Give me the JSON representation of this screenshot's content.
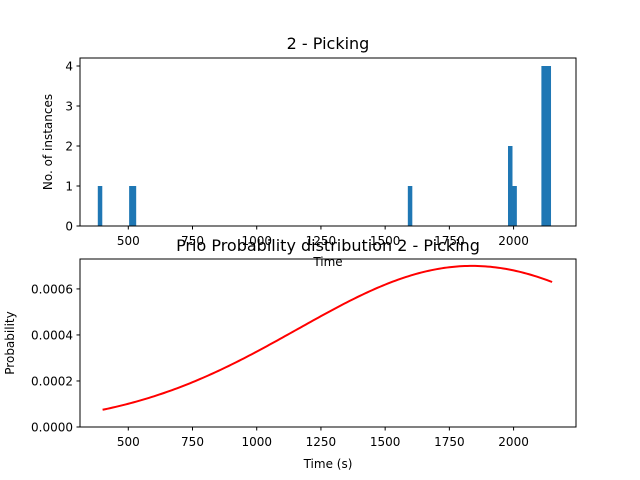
{
  "chart_data": [
    {
      "type": "bar",
      "title": "2 - Picking",
      "xlabel": "Time",
      "ylabel": "No. of instances",
      "xlim": [
        312,
        2243
      ],
      "ylim": [
        0,
        4.2
      ],
      "xticks": [
        500,
        750,
        1000,
        1250,
        1500,
        1750,
        2000
      ],
      "yticks": [
        0,
        1,
        2,
        3,
        4
      ],
      "bar_color": "#1f77b4",
      "bars": [
        {
          "x": 390,
          "value": 1
        },
        {
          "x": 423,
          "value": 0
        },
        {
          "x": 512,
          "value": 1
        },
        {
          "x": 522,
          "value": 1
        },
        {
          "x": 1597,
          "value": 1
        },
        {
          "x": 1987,
          "value": 2
        },
        {
          "x": 2004,
          "value": 1
        },
        {
          "x": 2117,
          "value": 4
        },
        {
          "x": 2127,
          "value": 4
        },
        {
          "x": 2137,
          "value": 4
        }
      ]
    },
    {
      "type": "line",
      "title": "Prio Probability distribution 2 - Picking",
      "xlabel": "Time (s)",
      "ylabel": "Probability",
      "xlim": [
        312,
        2243
      ],
      "ylim": [
        0,
        0.00073
      ],
      "xticks": [
        500,
        750,
        1000,
        1250,
        1500,
        1750,
        2000
      ],
      "yticks": [
        "0.0000",
        "0.0002",
        "0.0004",
        "0.0006"
      ],
      "line_color": "#ff0000",
      "distribution": {
        "mean": 1838,
        "std": 680,
        "peak": 0.0007
      },
      "x_range": [
        400,
        2155
      ]
    }
  ]
}
